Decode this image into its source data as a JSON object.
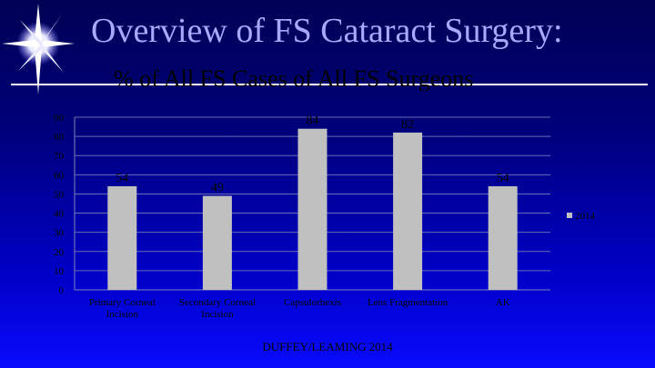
{
  "slide": {
    "title": "Overview of FS Cataract Surgery:",
    "subtitle": "% of All FS Cases of All FS Surgeons",
    "footer": "DUFFEY/LEAMING 2014"
  },
  "colors": {
    "bar": "#c0c0c0",
    "title": "#a8a8ff",
    "axis_text": "#000000"
  },
  "chart_data": {
    "type": "bar",
    "categories": [
      "Primary Corneal Incision",
      "Secondary Corneal Incision",
      "Capsulorhexis",
      "Lens Fragmentation",
      "AK"
    ],
    "category_lines": [
      [
        "Primary Corneal",
        "Incision"
      ],
      [
        "Secondary Corneal",
        "Incision"
      ],
      [
        "Capsulorhexis"
      ],
      [
        "Lens Fragmentation"
      ],
      [
        "AK"
      ]
    ],
    "series": [
      {
        "name": "2014",
        "values": [
          54,
          49,
          84,
          82,
          54
        ]
      }
    ],
    "data_labels": [
      "54",
      "49",
      "84",
      "82",
      "54"
    ],
    "yticks": [
      0,
      10,
      20,
      30,
      40,
      50,
      60,
      70,
      80,
      90
    ],
    "ylim": [
      0,
      90
    ],
    "grid": true,
    "legend_position": "right"
  }
}
